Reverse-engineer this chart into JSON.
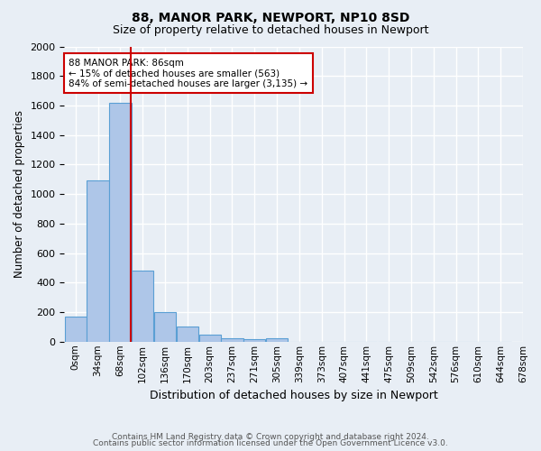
{
  "title1": "88, MANOR PARK, NEWPORT, NP10 8SD",
  "title2": "Size of property relative to detached houses in Newport",
  "xlabel": "Distribution of detached houses by size in Newport",
  "ylabel": "Number of detached properties",
  "bar_values": [
    170,
    1090,
    1620,
    480,
    200,
    100,
    45,
    20,
    15,
    20,
    0,
    0,
    0,
    0,
    0,
    0,
    0,
    0,
    0,
    0
  ],
  "bar_labels": [
    "0sqm",
    "34sqm",
    "68sqm",
    "102sqm",
    "136sqm",
    "170sqm",
    "203sqm",
    "237sqm",
    "271sqm",
    "305sqm",
    "339sqm",
    "373sqm",
    "407sqm",
    "441sqm",
    "475sqm",
    "509sqm",
    "542sqm",
    "576sqm",
    "610sqm",
    "644sqm",
    "678sqm"
  ],
  "bar_color": "#aec6e8",
  "bar_edge_color": "#5a9fd4",
  "vline_position": 2.47,
  "vline_color": "#cc0000",
  "ylim": [
    0,
    2000
  ],
  "yticks": [
    0,
    200,
    400,
    600,
    800,
    1000,
    1200,
    1400,
    1600,
    1800,
    2000
  ],
  "annotation_title": "88 MANOR PARK: 86sqm",
  "annotation_line1": "← 15% of detached houses are smaller (563)",
  "annotation_line2": "84% of semi-detached houses are larger (3,135) →",
  "annotation_box_color": "#ffffff",
  "annotation_box_edge": "#cc0000",
  "footer1": "Contains HM Land Registry data © Crown copyright and database right 2024.",
  "footer2": "Contains public sector information licensed under the Open Government Licence v3.0.",
  "bg_color": "#e8eef5",
  "plot_bg_color": "#e8eef5",
  "grid_color": "#ffffff",
  "n_bars": 20
}
